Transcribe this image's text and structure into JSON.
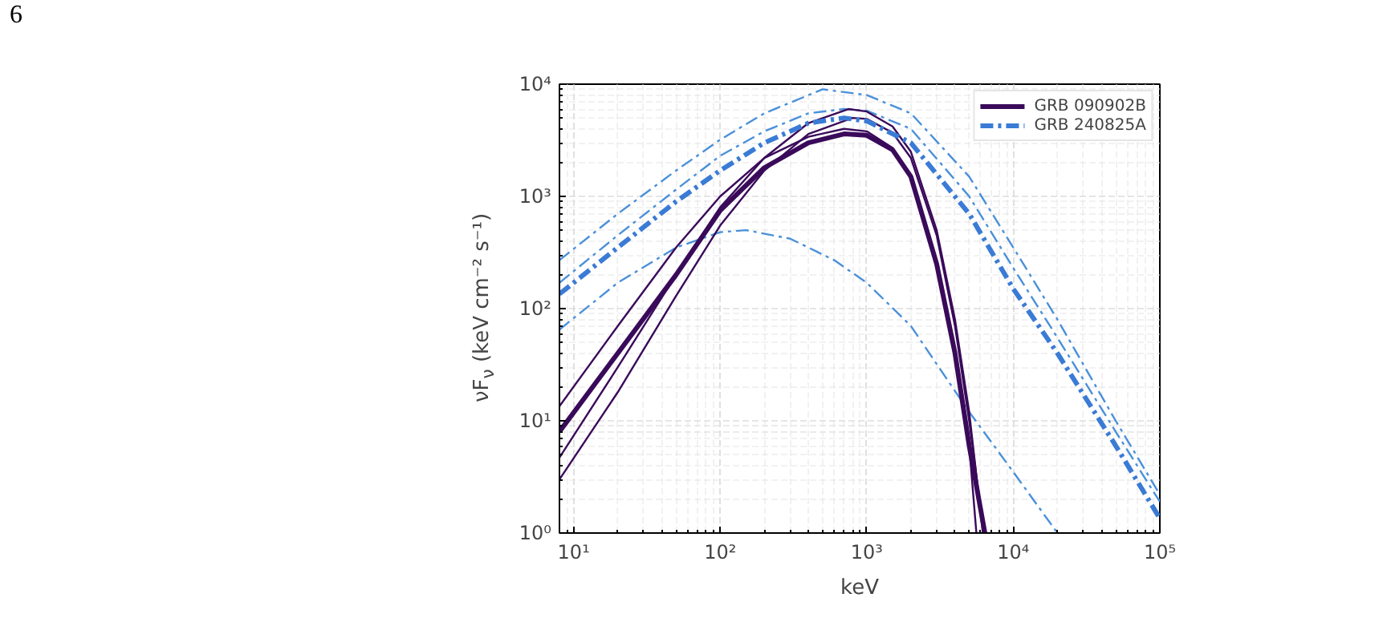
{
  "chart_data": {
    "type": "line",
    "xlabel": "keV",
    "ylabel": "νF$_{ν}$ (keV cm⁻² s⁻¹)",
    "annotations": [
      "6"
    ],
    "log": "xy",
    "grid": true,
    "legend": "top right",
    "xlim": [
      8,
      100000
    ],
    "ylim": [
      1,
      10000
    ],
    "xticks": [
      {
        "value": 10,
        "label": "10¹"
      },
      {
        "value": 100,
        "label": "10²"
      },
      {
        "value": 1000,
        "label": "10³"
      },
      {
        "value": 10000,
        "label": "10⁴"
      },
      {
        "value": 100000,
        "label": "10⁵"
      }
    ],
    "yticks": [
      {
        "value": 1,
        "label": "10⁰"
      },
      {
        "value": 10,
        "label": "10¹"
      },
      {
        "value": 100,
        "label": "10²"
      },
      {
        "value": 1000,
        "label": "10³"
      },
      {
        "value": 10000,
        "label": "10⁴"
      }
    ],
    "series": [
      {
        "color": "#4a90d9",
        "line_style": "dashdot",
        "x": [
          8,
          20,
          50,
          100,
          200,
          500,
          1000,
          2000,
          5000,
          10000,
          20000,
          50000,
          100000
        ],
        "values": [
          270,
          700,
          1700,
          3200,
          5500,
          9000,
          8000,
          5500,
          1500,
          350,
          80,
          10,
          2.2
        ]
      },
      {
        "color": "#4a90d9",
        "line_style": "dashdot",
        "x": [
          8,
          20,
          50,
          100,
          200,
          400,
          700,
          1000,
          2000,
          5000,
          10000,
          20000,
          50000,
          100000
        ],
        "values": [
          170,
          450,
          1150,
          2300,
          3800,
          5500,
          6000,
          5800,
          4000,
          1000,
          230,
          55,
          8,
          1.9
        ]
      },
      {
        "color": "#4a90d9",
        "line_style": "dashdot",
        "x": [
          8,
          20,
          50,
          100,
          150,
          300,
          600,
          1000,
          2000,
          5000,
          10000,
          20000
        ],
        "values": [
          65,
          170,
          350,
          480,
          500,
          420,
          270,
          170,
          70,
          12,
          3.5,
          1.0
        ]
      },
      {
        "color": "#3a0a5a",
        "line_style": "solid",
        "x": [
          8,
          20,
          50,
          100,
          200,
          400,
          700,
          1000,
          1500,
          2000,
          3000,
          4000,
          5000,
          5600
        ],
        "values": [
          13.5,
          70,
          350,
          1000,
          2200,
          3400,
          4000,
          3800,
          2700,
          1500,
          250,
          40,
          6,
          1
        ]
      },
      {
        "color": "#3a0a5a",
        "line_style": "solid",
        "x": [
          8,
          20,
          50,
          100,
          200,
          400,
          750,
          1000,
          1500,
          2000,
          3000,
          4000,
          5000,
          6200
        ],
        "values": [
          4.7,
          30,
          200,
          800,
          2200,
          4500,
          6000,
          5700,
          4200,
          2500,
          500,
          80,
          12,
          1
        ]
      },
      {
        "color": "#3a0a5a",
        "line_style": "solid",
        "x": [
          8,
          20,
          50,
          100,
          200,
          400,
          800,
          1000,
          1500,
          2000,
          3000,
          4000,
          5000,
          6300
        ],
        "values": [
          3,
          18,
          130,
          550,
          1700,
          3600,
          5000,
          4900,
          3700,
          2200,
          450,
          70,
          10,
          1
        ]
      },
      {
        "name": "GRB 090902B",
        "color": "#3a0a5a",
        "line_style": "solid",
        "x": [
          8,
          20,
          50,
          100,
          200,
          400,
          700,
          1000,
          1500,
          2000,
          3000,
          4000,
          5000,
          6400
        ],
        "values": [
          8,
          40,
          200,
          750,
          1800,
          3000,
          3600,
          3500,
          2600,
          1500,
          250,
          40,
          6,
          1
        ]
      },
      {
        "name": "GRB 240825A",
        "color": "#3a7bd5",
        "line_style": "dashdot",
        "x": [
          8,
          20,
          50,
          100,
          200,
          400,
          700,
          1000,
          2000,
          5000,
          10000,
          20000,
          50000,
          100000
        ],
        "values": [
          135,
          350,
          900,
          1700,
          3000,
          4500,
          5000,
          4700,
          3000,
          700,
          150,
          40,
          6,
          1.35
        ]
      }
    ]
  }
}
